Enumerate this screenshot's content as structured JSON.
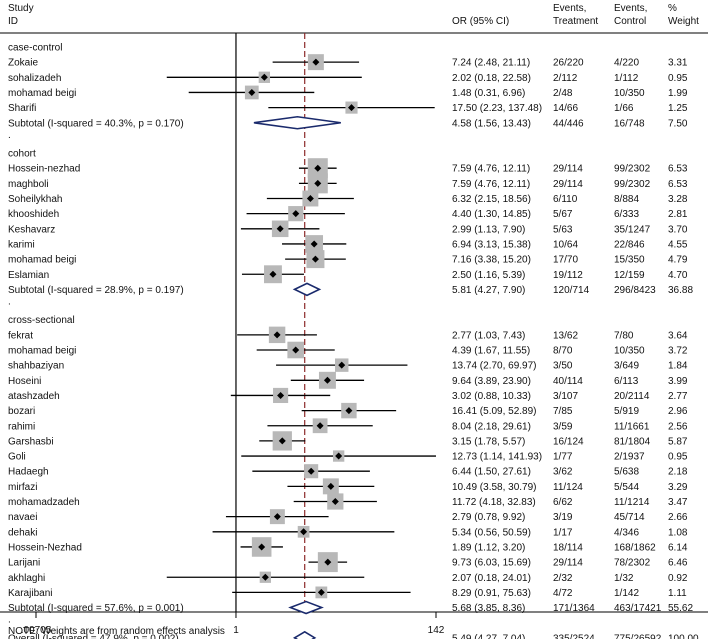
{
  "chart_data": {
    "type": "forest",
    "headers": {
      "study": "Study",
      "id": "ID",
      "or": "OR (95% CI)",
      "events_t_1": "Events,",
      "events_t_2": "Treatment",
      "events_c_1": "Events,",
      "events_c_2": "Control",
      "weight_1": "%",
      "weight_2": "Weight"
    },
    "x_axis": {
      "scale": "log",
      "ticks": [
        ".00705",
        "1",
        "142"
      ],
      "tick_values": [
        0.00705,
        1,
        142
      ],
      "null_value": 1,
      "overall_line": 5.49
    },
    "groups": [
      {
        "name": "case-control",
        "studies": [
          {
            "id": "Zokaie",
            "or": 7.24,
            "lo": 2.48,
            "hi": 21.11,
            "ci": "7.24 (2.48, 21.11)",
            "et": "26/220",
            "ec": "4/220",
            "w": "3.31"
          },
          {
            "id": "sohalizadeh",
            "or": 2.02,
            "lo": 0.18,
            "hi": 22.58,
            "ci": "2.02 (0.18, 22.58)",
            "et": "2/112",
            "ec": "1/112",
            "w": "0.95"
          },
          {
            "id": "mohamad beigi",
            "or": 1.48,
            "lo": 0.31,
            "hi": 6.96,
            "ci": "1.48 (0.31, 6.96)",
            "et": "2/48",
            "ec": "10/350",
            "w": "1.99"
          },
          {
            "id": "Sharifi",
            "or": 17.5,
            "lo": 2.23,
            "hi": 137.48,
            "ci": "17.50 (2.23, 137.48)",
            "et": "14/66",
            "ec": "1/66",
            "w": "1.25"
          }
        ],
        "subtotal": {
          "label": "Subtotal  (I-squared = 40.3%, p = 0.170)",
          "or": 4.58,
          "lo": 1.56,
          "hi": 13.43,
          "ci": "4.58 (1.56, 13.43)",
          "et": "44/446",
          "ec": "16/748",
          "w": "7.50"
        }
      },
      {
        "name": "cohort",
        "studies": [
          {
            "id": "Hossein-nezhad",
            "or": 7.59,
            "lo": 4.76,
            "hi": 12.11,
            "ci": "7.59 (4.76, 12.11)",
            "et": "29/114",
            "ec": "99/2302",
            "w": "6.53"
          },
          {
            "id": "maghboli",
            "or": 7.59,
            "lo": 4.76,
            "hi": 12.11,
            "ci": "7.59 (4.76, 12.11)",
            "et": "29/114",
            "ec": "99/2302",
            "w": "6.53"
          },
          {
            "id": "Soheilykhah",
            "or": 6.32,
            "lo": 2.15,
            "hi": 18.56,
            "ci": "6.32 (2.15, 18.56)",
            "et": "6/110",
            "ec": "8/884",
            "w": "3.28"
          },
          {
            "id": "khooshideh",
            "or": 4.4,
            "lo": 1.3,
            "hi": 14.85,
            "ci": "4.40 (1.30, 14.85)",
            "et": "5/67",
            "ec": "6/333",
            "w": "2.81"
          },
          {
            "id": "Keshavarz",
            "or": 2.99,
            "lo": 1.13,
            "hi": 7.9,
            "ci": "2.99 (1.13, 7.90)",
            "et": "5/63",
            "ec": "35/1247",
            "w": "3.70"
          },
          {
            "id": "karimi",
            "or": 6.94,
            "lo": 3.13,
            "hi": 15.38,
            "ci": "6.94 (3.13, 15.38)",
            "et": "10/64",
            "ec": "22/846",
            "w": "4.55"
          },
          {
            "id": "mohamad beigi",
            "or": 7.16,
            "lo": 3.38,
            "hi": 15.2,
            "ci": "7.16 (3.38, 15.20)",
            "et": "17/70",
            "ec": "15/350",
            "w": "4.79"
          },
          {
            "id": "Eslamian",
            "or": 2.5,
            "lo": 1.16,
            "hi": 5.39,
            "ci": "2.50 (1.16, 5.39)",
            "et": "19/112",
            "ec": "12/159",
            "w": "4.70"
          }
        ],
        "subtotal": {
          "label": "Subtotal  (I-squared = 28.9%, p = 0.197)",
          "or": 5.81,
          "lo": 4.27,
          "hi": 7.9,
          "ci": "5.81 (4.27, 7.90)",
          "et": "120/714",
          "ec": "296/8423",
          "w": "36.88"
        }
      },
      {
        "name": "cross-sectional",
        "studies": [
          {
            "id": "fekrat",
            "or": 2.77,
            "lo": 1.03,
            "hi": 7.43,
            "ci": "2.77 (1.03, 7.43)",
            "et": "13/62",
            "ec": "7/80",
            "w": "3.64"
          },
          {
            "id": "mohamad beigi",
            "or": 4.39,
            "lo": 1.67,
            "hi": 11.55,
            "ci": "4.39 (1.67, 11.55)",
            "et": "8/70",
            "ec": "10/350",
            "w": "3.72"
          },
          {
            "id": "shahbaziyan",
            "or": 13.74,
            "lo": 2.7,
            "hi": 69.97,
            "ci": "13.74 (2.70, 69.97)",
            "et": "3/50",
            "ec": "3/649",
            "w": "1.84"
          },
          {
            "id": "Hoseini",
            "or": 9.64,
            "lo": 3.89,
            "hi": 23.9,
            "ci": "9.64 (3.89, 23.90)",
            "et": "40/114",
            "ec": "6/113",
            "w": "3.99"
          },
          {
            "id": "atashzadeh",
            "or": 3.02,
            "lo": 0.88,
            "hi": 10.33,
            "ci": "3.02 (0.88, 10.33)",
            "et": "3/107",
            "ec": "20/2114",
            "w": "2.77"
          },
          {
            "id": "bozari",
            "or": 16.41,
            "lo": 5.09,
            "hi": 52.89,
            "ci": "16.41 (5.09, 52.89)",
            "et": "7/85",
            "ec": "5/919",
            "w": "2.96"
          },
          {
            "id": "rahimi",
            "or": 8.04,
            "lo": 2.18,
            "hi": 29.61,
            "ci": "8.04 (2.18, 29.61)",
            "et": "3/59",
            "ec": "11/1661",
            "w": "2.56"
          },
          {
            "id": "Garshasbi",
            "or": 3.15,
            "lo": 1.78,
            "hi": 5.57,
            "ci": "3.15 (1.78, 5.57)",
            "et": "16/124",
            "ec": "81/1804",
            "w": "5.87"
          },
          {
            "id": "Goli",
            "or": 12.73,
            "lo": 1.14,
            "hi": 141.93,
            "ci": "12.73 (1.14, 141.93)",
            "et": "1/77",
            "ec": "2/1937",
            "w": "0.95"
          },
          {
            "id": "Hadaegh",
            "or": 6.44,
            "lo": 1.5,
            "hi": 27.61,
            "ci": "6.44 (1.50, 27.61)",
            "et": "3/62",
            "ec": "5/638",
            "w": "2.18"
          },
          {
            "id": "mirfazi",
            "or": 10.49,
            "lo": 3.58,
            "hi": 30.79,
            "ci": "10.49 (3.58, 30.79)",
            "et": "11/124",
            "ec": "5/544",
            "w": "3.29"
          },
          {
            "id": "mohamadzadeh",
            "or": 11.72,
            "lo": 4.18,
            "hi": 32.83,
            "ci": "11.72 (4.18, 32.83)",
            "et": "6/62",
            "ec": "11/1214",
            "w": "3.47"
          },
          {
            "id": "navaei",
            "or": 2.79,
            "lo": 0.78,
            "hi": 9.92,
            "ci": "2.79 (0.78, 9.92)",
            "et": "3/19",
            "ec": "45/714",
            "w": "2.66"
          },
          {
            "id": "dehaki",
            "or": 5.34,
            "lo": 0.56,
            "hi": 50.59,
            "ci": "5.34 (0.56, 50.59)",
            "et": "1/17",
            "ec": "4/346",
            "w": "1.08"
          },
          {
            "id": "Hossein-Nezhad",
            "or": 1.89,
            "lo": 1.12,
            "hi": 3.2,
            "ci": "1.89 (1.12, 3.20)",
            "et": "18/114",
            "ec": "168/1862",
            "w": "6.14"
          },
          {
            "id": "Larijani",
            "or": 9.73,
            "lo": 6.03,
            "hi": 15.69,
            "ci": "9.73 (6.03, 15.69)",
            "et": "29/114",
            "ec": "78/2302",
            "w": "6.46"
          },
          {
            "id": "akhlaghi",
            "or": 2.07,
            "lo": 0.18,
            "hi": 24.01,
            "ci": "2.07 (0.18, 24.01)",
            "et": "2/32",
            "ec": "1/32",
            "w": "0.92"
          },
          {
            "id": "Karajibani",
            "or": 8.29,
            "lo": 0.91,
            "hi": 75.63,
            "ci": "8.29 (0.91, 75.63)",
            "et": "4/72",
            "ec": "1/142",
            "w": "1.11"
          }
        ],
        "subtotal": {
          "label": "Subtotal  (I-squared = 57.6%, p = 0.001)",
          "or": 5.68,
          "lo": 3.85,
          "hi": 8.36,
          "ci": "5.68 (3.85, 8.36)",
          "et": "171/1364",
          "ec": "463/17421",
          "w": "55.62"
        }
      }
    ],
    "separator": ".",
    "overall": {
      "label": "Overall  (I-squared = 47.9%, p = 0.002)",
      "or": 5.49,
      "lo": 4.27,
      "hi": 7.04,
      "ci": "5.49 (4.27, 7.04)",
      "et": "335/2524",
      "ec": "775/26592",
      "w": "100.00"
    },
    "note": "NOTE: Weights are from random effects analysis",
    "colors": {
      "text": "#111111",
      "box": "#b8b8b8",
      "diamond": "#1a2a6c",
      "null_line": "#000000",
      "overall_line": "#8b2a2a"
    }
  }
}
